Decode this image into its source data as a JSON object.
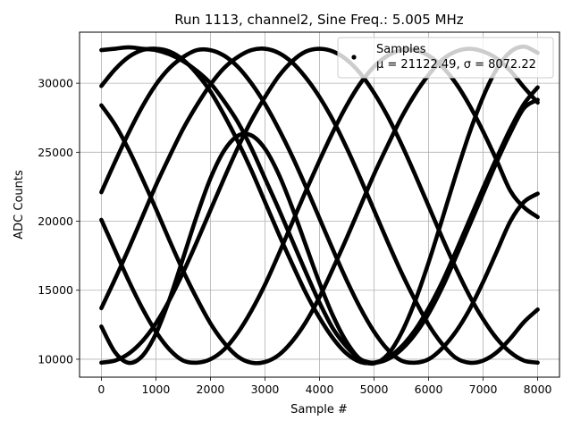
{
  "chart_data": {
    "type": "scatter",
    "title": "Run 1113, channel2, Sine Freq.: 5.005 MHz",
    "xlabel": "Sample #",
    "ylabel": "ADC Counts",
    "xlim": [
      -400,
      8400
    ],
    "ylim": [
      8700,
      33700
    ],
    "xticks": [
      0,
      1000,
      2000,
      3000,
      4000,
      5000,
      6000,
      7000,
      8000
    ],
    "yticks": [
      10000,
      15000,
      20000,
      25000,
      30000
    ],
    "xtick_labels": [
      "0",
      "1000",
      "2000",
      "3000",
      "4000",
      "5000",
      "6000",
      "7000",
      "8000"
    ],
    "ytick_labels": [
      "10000",
      "15000",
      "20000",
      "25000",
      "30000"
    ],
    "grid": true,
    "legend": {
      "placement": "top-right",
      "series_name": "Samples",
      "stats_label": "μ = 21122.49, σ = 8072.22"
    },
    "mean": 21122.49,
    "sigma": 8072.22,
    "marker_color": "#000000",
    "series": [
      {
        "x": [
          0,
          250,
          500,
          750,
          1000,
          1250,
          1500,
          1750,
          2000,
          2250,
          2500,
          2750,
          3000,
          3250,
          3500,
          3750,
          4000,
          4250,
          4500,
          4750,
          5000,
          5250,
          5500,
          5750,
          6000,
          6250,
          6500,
          6750,
          7000,
          7250,
          7500,
          7750,
          8000
        ],
        "y": [
          12370,
          10510,
          9740,
          10230,
          11850,
          14350,
          17340,
          20390,
          23100,
          25110,
          26190,
          26220,
          25250,
          23420,
          20980,
          18250,
          15530,
          13120,
          11230,
          9990,
          9700,
          10330,
          11890,
          14180,
          17010,
          20150,
          23370,
          26400,
          29010,
          31030,
          32270,
          32650,
          32200
        ]
      },
      {
        "x": [
          0,
          250,
          500,
          750,
          1000,
          1250,
          1500,
          1750,
          2000,
          2250,
          2500,
          2750,
          3000,
          3250,
          3500,
          3750,
          4000,
          4250,
          4500,
          4750,
          5000,
          5250,
          5500,
          5750,
          6000,
          6250,
          6500,
          6750,
          7000,
          7250,
          7500,
          7750,
          8000
        ],
        "y": [
          32400,
          32500,
          32600,
          32500,
          32400,
          32100,
          31600,
          30900,
          30000,
          28700,
          27200,
          25300,
          23100,
          20900,
          18600,
          16300,
          14100,
          12200,
          10900,
          10000,
          9750,
          10000,
          10700,
          11800,
          13300,
          15200,
          17400,
          19700,
          22000,
          24300,
          26400,
          28200,
          28800
        ]
      },
      {
        "x": [
          0,
          250,
          500,
          750,
          1000,
          1250,
          1500,
          1750,
          2000,
          2250,
          2500,
          2750,
          3000,
          3250,
          3500,
          3750,
          4000,
          4250,
          4500,
          4750,
          5000,
          5250,
          5500,
          5750,
          6000,
          6250,
          6500,
          6750,
          7000,
          7250,
          7500,
          7750,
          8000
        ],
        "y": [
          9750,
          9900,
          10400,
          11300,
          12600,
          14300,
          16300,
          18500,
          20800,
          23100,
          25300,
          27300,
          29000,
          30500,
          31600,
          32300,
          32500,
          32300,
          31700,
          30700,
          29300,
          27600,
          25600,
          23400,
          21100,
          18800,
          16600,
          14600,
          12900,
          11500,
          10500,
          9900,
          9750
        ]
      },
      {
        "x": [
          0,
          250,
          500,
          750,
          1000,
          1250,
          1500,
          1750,
          2000,
          2250,
          2500,
          2750,
          3000,
          3250,
          3500,
          3750,
          4000,
          4250,
          4500,
          4750,
          5000,
          5250,
          5500,
          5750,
          6000,
          6250,
          6500,
          6750,
          7000,
          7250,
          7500,
          7750,
          8000
        ],
        "y": [
          29800,
          31000,
          31900,
          32400,
          32500,
          32300,
          31700,
          30700,
          29400,
          27700,
          25800,
          23700,
          21400,
          19100,
          16900,
          14800,
          13000,
          11500,
          10400,
          9800,
          9750,
          10100,
          10900,
          12100,
          13700,
          15600,
          17800,
          20100,
          22400,
          24600,
          26700,
          28500,
          29700
        ]
      },
      {
        "x": [
          0,
          250,
          500,
          750,
          1000,
          1250,
          1500,
          1750,
          2000,
          2250,
          2500,
          2750,
          3000,
          3250,
          3500,
          3750,
          4000,
          4250,
          4500,
          4750,
          5000,
          5250,
          5500,
          5750,
          6000,
          6250,
          6500,
          6750,
          7000,
          7250,
          7500,
          7750,
          8000
        ],
        "y": [
          28400,
          27000,
          25200,
          23100,
          20900,
          18600,
          16400,
          14400,
          12600,
          11200,
          10200,
          9750,
          9800,
          10300,
          11300,
          12700,
          14500,
          16600,
          18800,
          21100,
          23400,
          25500,
          27500,
          29200,
          30600,
          31700,
          32300,
          32500,
          32300,
          31800,
          30900,
          29700,
          28600
        ]
      },
      {
        "x": [
          0,
          250,
          500,
          750,
          1000,
          1250,
          1500,
          1750,
          2000,
          2250,
          2500,
          2750,
          3000,
          3250,
          3500,
          3750,
          4000,
          4250,
          4500,
          4750,
          5000,
          5250,
          5500,
          5750,
          6000,
          6250,
          6500,
          6750,
          7000,
          7250,
          7500,
          7750,
          8000
        ],
        "y": [
          22100,
          24300,
          26400,
          28300,
          29900,
          31100,
          31900,
          32400,
          32400,
          32000,
          31200,
          30000,
          28500,
          26700,
          24700,
          22500,
          20200,
          17900,
          15700,
          13700,
          12000,
          10700,
          9900,
          9750,
          10000,
          10800,
          12000,
          13600,
          15600,
          17800,
          20000,
          21400,
          22000
        ]
      },
      {
        "x": [
          0,
          250,
          500,
          750,
          1000,
          1250,
          1500,
          1750,
          2000,
          2250,
          2500,
          2750,
          3000,
          3250,
          3500,
          3750,
          4000,
          4250,
          4500,
          4750,
          5000,
          5250,
          5500,
          5750,
          6000,
          6250,
          6500,
          6750,
          7000,
          7250,
          7500,
          7750,
          8000
        ],
        "y": [
          20100,
          17900,
          15700,
          13700,
          12000,
          10700,
          9900,
          9750,
          10000,
          10700,
          11900,
          13500,
          15400,
          17600,
          19900,
          22200,
          24400,
          26500,
          28400,
          30000,
          31200,
          32000,
          32400,
          32400,
          32000,
          31200,
          30000,
          28400,
          26500,
          24400,
          22200,
          21000,
          20300
        ]
      },
      {
        "x": [
          0,
          250,
          500,
          750,
          1000,
          1250,
          1500,
          1750,
          2000,
          2250,
          2500,
          2750,
          3000,
          3250,
          3500,
          3750,
          4000,
          4250,
          4500,
          4750,
          5000,
          5250,
          5500,
          5750,
          6000,
          6250,
          6500,
          6750,
          7000,
          7250,
          7500,
          7750,
          8000
        ],
        "y": [
          13700,
          15800,
          18000,
          20300,
          22600,
          24700,
          26700,
          28400,
          29900,
          31100,
          31900,
          32400,
          32500,
          32200,
          31500,
          30400,
          29000,
          27300,
          25300,
          23100,
          20800,
          18500,
          16300,
          14300,
          12500,
          11100,
          10100,
          9750,
          9900,
          10500,
          11500,
          12700,
          13600
        ]
      }
    ]
  }
}
